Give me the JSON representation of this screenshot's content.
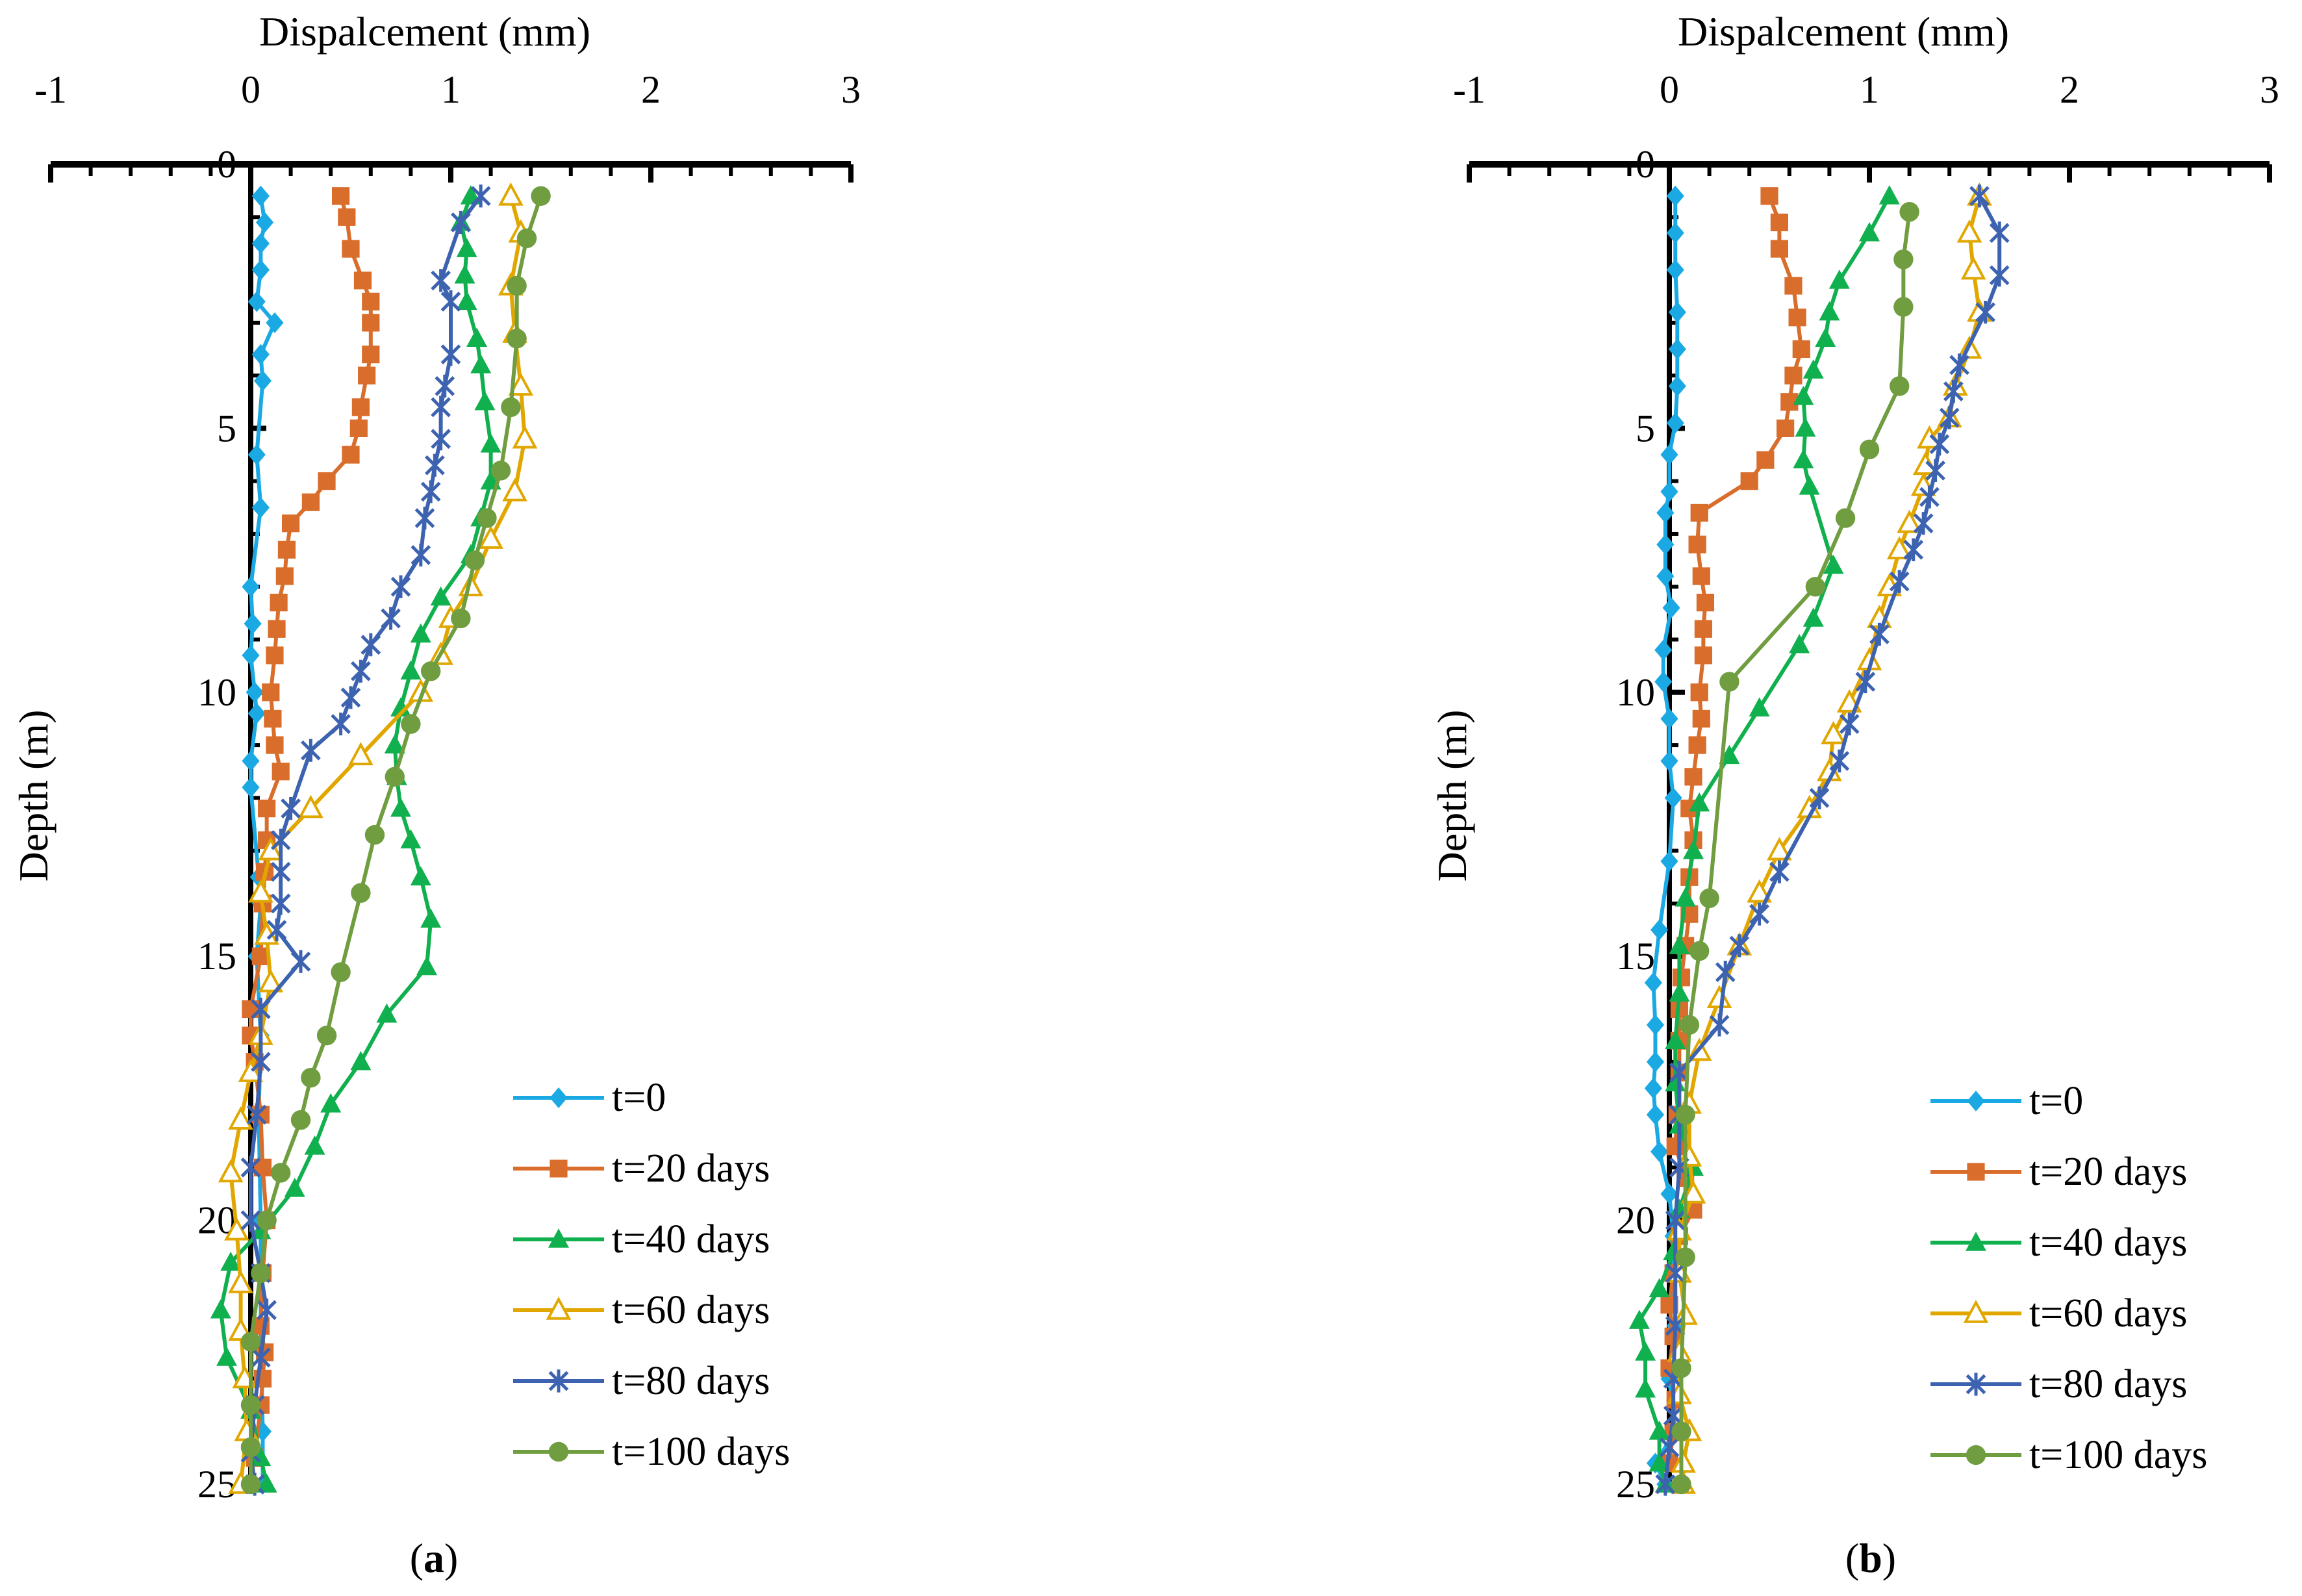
{
  "panel_labels": [
    "a",
    "b"
  ],
  "colors": {
    "t0": "#1ba9e4",
    "t20": "#d96d2b",
    "t40": "#11b04f",
    "t60": "#e1a700",
    "t80": "#3d63b0",
    "t100": "#6f9d3f",
    "axis": "#000000"
  },
  "chart_data": [
    {
      "type": "line",
      "panel": "a",
      "title": "",
      "xlabel": "Dispalcement  (mm)",
      "ylabel": "Depth  (m)",
      "xlim": [
        -1,
        3
      ],
      "ylim": [
        25,
        0
      ],
      "x_ticks": [
        "-1",
        "0",
        "1",
        "2",
        "3"
      ],
      "y_ticks": [
        "0",
        "5",
        "10",
        "15",
        "20",
        "25"
      ],
      "x_axis_position": "top",
      "legend_position": "bottom-right",
      "grid": false,
      "series": [
        {
          "name": "t=0",
          "color_key": "t0",
          "marker": "diamond",
          "depth": [
            0.6,
            1.1,
            1.5,
            2.0,
            2.6,
            3.0,
            3.6,
            4.1,
            5.5,
            6.5,
            8.0,
            8.7,
            9.3,
            10.0,
            10.4,
            11.3,
            11.8,
            13.5,
            14.0,
            15.0,
            16.5,
            18.0,
            20.0,
            22.0,
            24.0,
            25.0
          ],
          "values": [
            0.05,
            0.07,
            0.05,
            0.05,
            0.03,
            0.12,
            0.05,
            0.06,
            0.03,
            0.05,
            0.0,
            0.01,
            0.0,
            0.02,
            0.03,
            0.0,
            0.0,
            0.04,
            0.05,
            0.03,
            0.05,
            0.04,
            0.05,
            0.05,
            0.06,
            0.06
          ]
        },
        {
          "name": "t=20 days",
          "color_key": "t20",
          "marker": "square",
          "depth": [
            0.6,
            1.0,
            1.6,
            2.2,
            2.6,
            3.0,
            3.6,
            4.0,
            4.6,
            5.0,
            5.5,
            6.0,
            6.4,
            6.8,
            7.3,
            7.8,
            8.3,
            8.8,
            9.3,
            10.0,
            10.5,
            11.0,
            11.5,
            12.2,
            12.8,
            13.4,
            14.0,
            15.0,
            16.0,
            16.5,
            17.0,
            18.0,
            19.0,
            20.0,
            21.0,
            22.0,
            22.5,
            23.0,
            23.5,
            24.5
          ],
          "values": [
            0.45,
            0.48,
            0.5,
            0.56,
            0.6,
            0.6,
            0.6,
            0.58,
            0.55,
            0.54,
            0.5,
            0.38,
            0.3,
            0.2,
            0.18,
            0.17,
            0.14,
            0.13,
            0.12,
            0.1,
            0.11,
            0.12,
            0.15,
            0.08,
            0.08,
            0.07,
            0.06,
            0.05,
            0.0,
            0.0,
            0.02,
            0.05,
            0.06,
            0.08,
            0.06,
            0.05,
            0.07,
            0.06,
            0.05,
            0.02
          ]
        },
        {
          "name": "t=40 days",
          "color_key": "t40",
          "marker": "triangle",
          "depth": [
            0.6,
            1.1,
            1.6,
            2.1,
            2.6,
            3.3,
            3.8,
            4.5,
            5.3,
            6.0,
            6.7,
            7.4,
            8.2,
            8.9,
            9.6,
            10.3,
            11.0,
            11.6,
            12.2,
            12.8,
            13.5,
            14.3,
            15.2,
            16.1,
            17.0,
            17.8,
            18.6,
            19.4,
            20.2,
            20.8,
            21.7,
            22.6,
            23.6,
            24.5,
            25.0
          ],
          "values": [
            1.1,
            1.05,
            1.08,
            1.07,
            1.08,
            1.13,
            1.15,
            1.17,
            1.2,
            1.2,
            1.15,
            1.1,
            0.95,
            0.85,
            0.8,
            0.75,
            0.72,
            0.73,
            0.75,
            0.8,
            0.85,
            0.9,
            0.88,
            0.68,
            0.55,
            0.4,
            0.32,
            0.22,
            0.05,
            -0.1,
            -0.15,
            -0.12,
            0.0,
            0.05,
            0.08
          ]
        },
        {
          "name": "t=60 days",
          "color_key": "t60",
          "marker": "triangle-open",
          "depth": [
            0.6,
            1.3,
            2.3,
            3.2,
            4.2,
            5.2,
            6.2,
            7.1,
            8.0,
            8.6,
            9.3,
            10.0,
            11.2,
            12.2,
            13.0,
            13.8,
            14.6,
            15.5,
            16.5,
            17.2,
            18.1,
            19.1,
            20.2,
            21.2,
            22.1,
            23.0,
            24.0,
            25.0
          ],
          "values": [
            1.3,
            1.35,
            1.3,
            1.32,
            1.35,
            1.37,
            1.32,
            1.2,
            1.1,
            1.0,
            0.95,
            0.85,
            0.55,
            0.3,
            0.1,
            0.05,
            0.08,
            0.1,
            0.05,
            0.0,
            -0.05,
            -0.1,
            -0.07,
            -0.05,
            -0.05,
            -0.03,
            -0.02,
            -0.05
          ]
        },
        {
          "name": "t=80 days",
          "color_key": "t80",
          "marker": "star",
          "depth": [
            0.6,
            1.1,
            2.2,
            2.6,
            3.6,
            4.2,
            4.6,
            5.2,
            5.7,
            6.2,
            6.7,
            7.4,
            8.0,
            8.6,
            9.1,
            9.6,
            10.1,
            10.6,
            11.1,
            12.2,
            12.8,
            13.4,
            14.0,
            14.5,
            15.1,
            16.0,
            17.0,
            18.0,
            19.0,
            20.0,
            21.0,
            21.7,
            22.6,
            23.5,
            24.4,
            25.0
          ],
          "values": [
            1.15,
            1.05,
            0.95,
            1.0,
            1.0,
            0.97,
            0.95,
            0.95,
            0.92,
            0.9,
            0.87,
            0.85,
            0.75,
            0.7,
            0.6,
            0.55,
            0.5,
            0.45,
            0.3,
            0.2,
            0.15,
            0.15,
            0.15,
            0.13,
            0.25,
            0.05,
            0.05,
            0.03,
            0.0,
            0.0,
            0.05,
            0.08,
            0.05,
            0.02,
            0.0,
            0.02
          ]
        },
        {
          "name": "t=100 days",
          "color_key": "t100",
          "marker": "circle",
          "depth": [
            0.6,
            1.4,
            2.3,
            3.3,
            4.6,
            5.8,
            6.7,
            7.5,
            8.6,
            9.6,
            10.6,
            11.6,
            12.7,
            13.8,
            15.3,
            16.5,
            17.3,
            18.1,
            19.1,
            20.0,
            21.0,
            22.3,
            23.5,
            24.3,
            25.0
          ],
          "values": [
            1.45,
            1.38,
            1.33,
            1.33,
            1.3,
            1.25,
            1.18,
            1.12,
            1.05,
            0.9,
            0.8,
            0.72,
            0.62,
            0.55,
            0.45,
            0.38,
            0.3,
            0.25,
            0.15,
            0.08,
            0.05,
            0.0,
            0.0,
            0.0,
            0.0
          ]
        }
      ]
    },
    {
      "type": "line",
      "panel": "b",
      "title": "",
      "xlabel": "Dispalcement  (mm)",
      "ylabel": "Depth  (m)",
      "xlim": [
        -1,
        3
      ],
      "ylim": [
        25,
        0
      ],
      "x_ticks": [
        "-1",
        "0",
        "1",
        "2",
        "3"
      ],
      "y_ticks": [
        "0",
        "5",
        "10",
        "15",
        "20",
        "25"
      ],
      "x_axis_position": "top",
      "legend_position": "bottom-right",
      "grid": false,
      "series": [
        {
          "name": "t=0",
          "color_key": "t0",
          "marker": "diamond",
          "depth": [
            0.6,
            1.3,
            2.0,
            2.8,
            3.5,
            4.2,
            4.9,
            5.5,
            6.2,
            6.6,
            7.2,
            7.8,
            8.4,
            9.2,
            9.8,
            10.5,
            11.3,
            12.0,
            13.2,
            14.5,
            15.5,
            16.3,
            17.0,
            17.5,
            18.0,
            18.7,
            19.5,
            20.3,
            21.0,
            22.0,
            23.0,
            24.0,
            24.6,
            25.0
          ],
          "values": [
            0.03,
            0.03,
            0.03,
            0.04,
            0.04,
            0.04,
            0.03,
            0.0,
            0.0,
            -0.02,
            -0.02,
            -0.02,
            0.01,
            -0.03,
            -0.03,
            0.0,
            0.0,
            0.02,
            0.0,
            -0.05,
            -0.08,
            -0.07,
            -0.07,
            -0.08,
            -0.07,
            -0.05,
            0.0,
            0.02,
            0.02,
            0.03,
            0.0,
            0.03,
            -0.07,
            -0.02
          ]
        },
        {
          "name": "t=20 days",
          "color_key": "t20",
          "marker": "square",
          "depth": [
            0.6,
            1.1,
            1.6,
            2.3,
            2.9,
            3.5,
            4.0,
            4.5,
            5.0,
            5.6,
            6.0,
            6.6,
            7.2,
            7.8,
            8.3,
            8.8,
            9.3,
            10.0,
            10.5,
            11.0,
            11.6,
            12.2,
            12.8,
            13.5,
            14.2,
            14.8,
            15.4,
            16.0,
            16.6,
            17.2,
            18.0,
            18.6,
            19.2,
            19.8,
            20.3,
            21.0,
            21.6,
            22.2,
            22.8,
            23.4,
            24.0,
            24.6
          ],
          "values": [
            0.5,
            0.55,
            0.55,
            0.62,
            0.64,
            0.66,
            0.62,
            0.6,
            0.58,
            0.48,
            0.4,
            0.15,
            0.14,
            0.16,
            0.18,
            0.17,
            0.17,
            0.15,
            0.16,
            0.14,
            0.12,
            0.1,
            0.12,
            0.1,
            0.1,
            0.08,
            0.06,
            0.05,
            0.05,
            0.05,
            0.04,
            0.03,
            0.08,
            0.12,
            0.05,
            0.02,
            0.0,
            0.02,
            0.0,
            0.03,
            0.02,
            0.0
          ]
        },
        {
          "name": "t=40 days",
          "color_key": "t40",
          "marker": "triangle",
          "depth": [
            0.6,
            1.3,
            2.2,
            2.8,
            3.3,
            3.9,
            4.4,
            5.0,
            5.6,
            6.1,
            7.6,
            8.6,
            9.1,
            10.3,
            11.2,
            12.1,
            13.0,
            13.9,
            14.8,
            15.7,
            16.6,
            17.4,
            18.2,
            19.0,
            19.8,
            20.6,
            21.3,
            21.9,
            22.5,
            23.2,
            24.0,
            24.6,
            25.0
          ],
          "values": [
            1.1,
            1.0,
            0.85,
            0.8,
            0.78,
            0.72,
            0.67,
            0.68,
            0.67,
            0.7,
            0.82,
            0.72,
            0.65,
            0.45,
            0.3,
            0.15,
            0.12,
            0.08,
            0.05,
            0.05,
            0.03,
            0.03,
            0.05,
            0.12,
            0.05,
            0.02,
            -0.05,
            -0.15,
            -0.12,
            -0.12,
            -0.05,
            -0.05,
            -0.02
          ]
        },
        {
          "name": "t=60 days",
          "color_key": "t60",
          "marker": "triangle-open",
          "depth": [
            0.6,
            1.3,
            2.0,
            2.8,
            3.5,
            4.2,
            4.8,
            5.2,
            5.7,
            6.1,
            6.8,
            7.3,
            8.0,
            8.6,
            9.4,
            10.2,
            10.8,
            11.5,
            12.2,
            13.0,
            13.8,
            14.8,
            15.8,
            16.8,
            17.8,
            18.8,
            19.5,
            20.2,
            21.0,
            21.8,
            22.5,
            23.3,
            24.0,
            24.6,
            25.0
          ],
          "values": [
            1.55,
            1.5,
            1.52,
            1.55,
            1.5,
            1.43,
            1.4,
            1.3,
            1.28,
            1.27,
            1.2,
            1.15,
            1.1,
            1.05,
            1.0,
            0.9,
            0.82,
            0.8,
            0.7,
            0.55,
            0.45,
            0.35,
            0.25,
            0.15,
            0.1,
            0.1,
            0.12,
            0.05,
            0.05,
            0.08,
            0.05,
            0.05,
            0.1,
            0.07,
            0.07
          ]
        },
        {
          "name": "t=80 days",
          "color_key": "t80",
          "marker": "star",
          "depth": [
            0.6,
            1.3,
            2.1,
            2.8,
            3.8,
            4.3,
            4.8,
            5.3,
            5.8,
            6.3,
            6.8,
            7.3,
            7.9,
            8.9,
            9.8,
            10.6,
            11.3,
            12.0,
            13.4,
            14.2,
            14.8,
            15.3,
            16.3,
            17.2,
            18.0,
            19.0,
            20.0,
            21.0,
            22.0,
            23.0,
            23.7,
            24.3,
            25.0
          ],
          "values": [
            1.55,
            1.65,
            1.65,
            1.58,
            1.45,
            1.42,
            1.4,
            1.35,
            1.33,
            1.3,
            1.27,
            1.22,
            1.15,
            1.05,
            0.98,
            0.9,
            0.85,
            0.75,
            0.55,
            0.45,
            0.35,
            0.28,
            0.25,
            0.05,
            0.05,
            0.05,
            0.03,
            0.03,
            0.03,
            0.02,
            0.02,
            0.0,
            -0.02
          ]
        },
        {
          "name": "t=100 days",
          "color_key": "t100",
          "marker": "circle",
          "depth": [
            0.9,
            1.8,
            2.7,
            4.2,
            5.4,
            6.7,
            8.0,
            9.8,
            13.9,
            14.9,
            16.3,
            18.0,
            20.7,
            22.8,
            24.0,
            25.0
          ],
          "values": [
            1.2,
            1.17,
            1.17,
            1.15,
            1.0,
            0.88,
            0.73,
            0.3,
            0.2,
            0.15,
            0.1,
            0.08,
            0.08,
            0.06,
            0.06,
            0.06
          ]
        }
      ]
    }
  ]
}
